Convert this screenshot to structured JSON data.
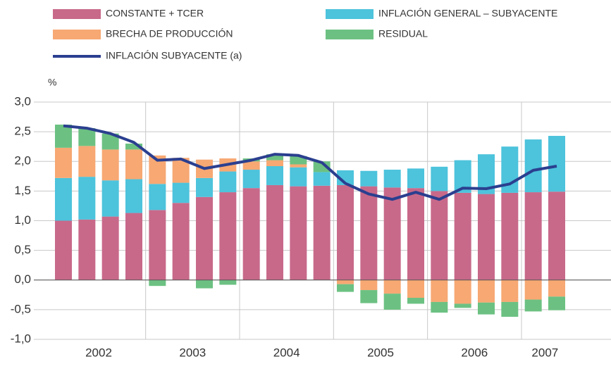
{
  "chart_data": {
    "type": "bar",
    "stacked": true,
    "y_label": "%",
    "categories": [
      "2002",
      null,
      null,
      null,
      "2003",
      null,
      null,
      null,
      "2004",
      null,
      null,
      null,
      "2005",
      null,
      null,
      null,
      "2006",
      null,
      null,
      null,
      "2007",
      null
    ],
    "series": [
      {
        "name": "CONSTANTE + TCER",
        "color": "#c8698a",
        "values": [
          1.0,
          1.02,
          1.07,
          1.13,
          1.18,
          1.3,
          1.4,
          1.48,
          1.55,
          1.6,
          1.58,
          1.59,
          1.6,
          1.58,
          1.56,
          1.55,
          1.5,
          1.47,
          1.45,
          1.47,
          1.48,
          1.49
        ]
      },
      {
        "name": "INFLACIÓN GENERAL – SUBYACENTE",
        "color": "#4dc3dc",
        "values": [
          0.72,
          0.72,
          0.61,
          0.57,
          0.44,
          0.34,
          0.32,
          0.35,
          0.31,
          0.32,
          0.32,
          0.23,
          0.25,
          0.26,
          0.3,
          0.33,
          0.41,
          0.55,
          0.67,
          0.78,
          0.89,
          0.94
        ]
      },
      {
        "name": "BRECHA DE PRODUCCIÓN",
        "color": "#f7a873",
        "values": [
          0.51,
          0.52,
          0.52,
          0.5,
          0.48,
          0.42,
          0.31,
          0.22,
          0.14,
          0.1,
          0.05,
          0.0,
          -0.07,
          -0.17,
          -0.23,
          -0.3,
          -0.37,
          -0.4,
          -0.38,
          -0.37,
          -0.33,
          -0.28
        ]
      },
      {
        "name": "RESIDUAL",
        "color": "#6cc182",
        "values": [
          0.39,
          0.3,
          0.27,
          0.1,
          -0.1,
          0.0,
          -0.14,
          -0.08,
          0.05,
          0.1,
          0.14,
          0.18,
          -0.13,
          -0.22,
          -0.27,
          -0.1,
          -0.18,
          -0.07,
          -0.2,
          -0.25,
          -0.2,
          -0.23
        ]
      },
      {
        "name": "INFLACIÓN SUBYACENTE (a)",
        "type": "line",
        "color": "#2b3f8f",
        "values": [
          2.6,
          2.56,
          2.47,
          2.32,
          2.02,
          2.04,
          1.88,
          1.95,
          2.02,
          2.12,
          2.1,
          1.98,
          1.63,
          1.45,
          1.36,
          1.48,
          1.36,
          1.55,
          1.54,
          1.62,
          1.85,
          1.92
        ]
      }
    ],
    "ylim": [
      -1.0,
      3.0
    ],
    "yticks": [
      {
        "value": -1.0,
        "label": "-1,0"
      },
      {
        "value": -0.5,
        "label": "-0,5"
      },
      {
        "value": 0.0,
        "label": "0,0"
      },
      {
        "value": 0.5,
        "label": "0,5"
      },
      {
        "value": 1.0,
        "label": "1,0"
      },
      {
        "value": 1.5,
        "label": "1,5"
      },
      {
        "value": 2.0,
        "label": "2,0"
      },
      {
        "value": 2.5,
        "label": "2,5"
      },
      {
        "value": 3.0,
        "label": "3,0"
      }
    ],
    "grid": true
  }
}
